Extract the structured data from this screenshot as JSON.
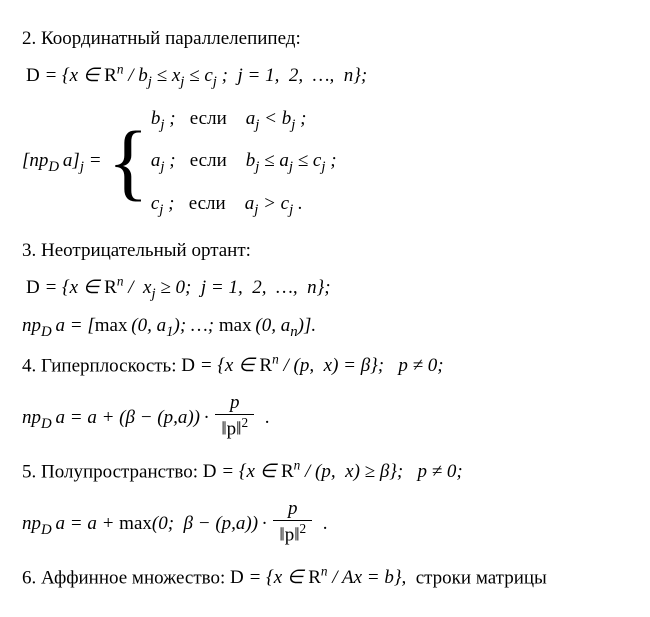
{
  "sec2": {
    "title": "2. Координатный параллелепипед:",
    "setdef": "D = { x ∈ Rⁿ / b_j ≤ x_j ≤ c_j ;  j = 1, 2, …, n };",
    "lhs": "[np_D a]_j =",
    "case1": {
      "val": "b_j ;",
      "word": "если",
      "cond": "a_j < b_j ;"
    },
    "case2": {
      "val": "a_j ;",
      "word": "если",
      "cond": "b_j ≤ a_j ≤ c_j ;"
    },
    "case3": {
      "val": "c_j ;",
      "word": "если",
      "cond": "a_j > c_j ."
    }
  },
  "sec3": {
    "title": "3. Неотрицательный ортант:",
    "setdef": "D = { x ∈ Rⁿ /  x_j ≥ 0;  j = 1, 2, …, n };",
    "proj": "np_D a = [max (0, a₁); …; max (0, a_n)]."
  },
  "sec4": {
    "titleA": "4. Гиперплоскость:  ",
    "titleB": "D = { x ∈ Rⁿ / (p,  x) = β };   p ≠ 0;",
    "proj_pre": "np_D a = a + (β − (p, a)) ·",
    "proj_num": "p",
    "proj_den": "‖p‖²",
    "proj_post": " ."
  },
  "sec5": {
    "titleA": "5. Полупространство:  ",
    "titleB": "D = { x ∈ Rⁿ / (p,  x) ≥ β };   p ≠ 0;",
    "proj_pre": "np_D a = a + max(0;  β − (p, a)) ·",
    "proj_num": "p",
    "proj_den": "‖p‖²",
    "proj_post": " ."
  },
  "sec6": {
    "lineA": "6. Аффинное множество:  ",
    "lineB": "D = { x ∈ Rⁿ / Ax = b },  строки матрицы"
  }
}
